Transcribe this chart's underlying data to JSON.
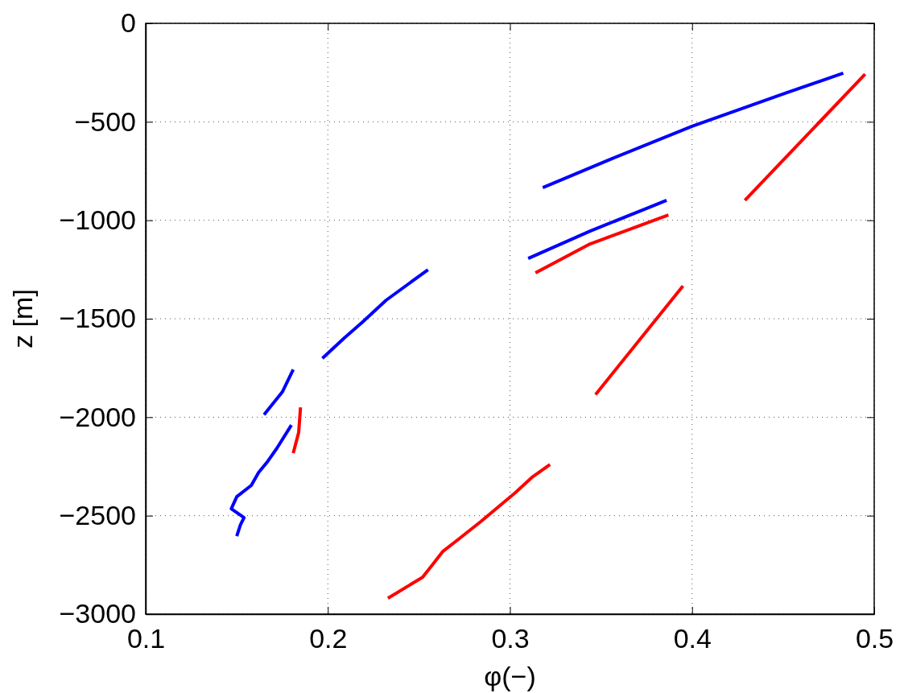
{
  "chart_data": {
    "type": "line",
    "xlabel": "φ(−)",
    "ylabel": "z [m]",
    "xlim": [
      0.1,
      0.5
    ],
    "ylim": [
      -3000,
      0
    ],
    "xticks": [
      0.1,
      0.2,
      0.3,
      0.4,
      0.5
    ],
    "yticks": [
      {
        "value": -3000,
        "label": "−3000"
      },
      {
        "value": -2500,
        "label": "−2500"
      },
      {
        "value": -2000,
        "label": "−2000"
      },
      {
        "value": -1500,
        "label": "−1500"
      },
      {
        "value": -1000,
        "label": "−1000"
      },
      {
        "value": -500,
        "label": "−500"
      },
      0
    ],
    "grid": true,
    "line_style": "solid",
    "marker": "none",
    "series": [
      {
        "color": "#0000ff",
        "x": [
          0.318,
          0.356,
          0.4,
          0.452,
          0.483
        ],
        "values": [
          -834,
          -687,
          -523,
          -352,
          -253
        ]
      },
      {
        "color": "#0000ff",
        "x": [
          0.31,
          0.344,
          0.386
        ],
        "values": [
          -1194,
          -1055,
          -899
        ]
      },
      {
        "color": "#ff0000",
        "x": [
          0.314,
          0.344,
          0.387
        ],
        "values": [
          -1267,
          -1120,
          -973
        ]
      },
      {
        "color": "#ff0000",
        "x": [
          0.429,
          0.495
        ],
        "values": [
          -899,
          -258
        ]
      },
      {
        "color": "#ff0000",
        "x": [
          0.347,
          0.395
        ],
        "values": [
          -1885,
          -1333
        ]
      },
      {
        "color": "#ff0000",
        "x": [
          0.233,
          0.252,
          0.257,
          0.263,
          0.271,
          0.284,
          0.303,
          0.312,
          0.322
        ],
        "values": [
          -2919,
          -2813,
          -2755,
          -2683,
          -2625,
          -2530,
          -2383,
          -2306,
          -2240
        ]
      },
      {
        "color": "#0000ff",
        "x": [
          0.197,
          0.209,
          0.219,
          0.232,
          0.255
        ],
        "values": [
          -1701,
          -1598,
          -1517,
          -1406,
          -1251
        ]
      },
      {
        "color": "#0000ff",
        "x": [
          0.165,
          0.175,
          0.181
        ],
        "values": [
          -1987,
          -1872,
          -1758
        ]
      },
      {
        "color": "#ff0000",
        "x": [
          0.181,
          0.184,
          0.185
        ],
        "values": [
          -2183,
          -2077,
          -1950
        ]
      },
      {
        "color": "#0000ff",
        "x": [
          0.15,
          0.152,
          0.154,
          0.147,
          0.15,
          0.158,
          0.162,
          0.167,
          0.172,
          0.18
        ],
        "values": [
          -2604,
          -2547,
          -2510,
          -2465,
          -2404,
          -2346,
          -2281,
          -2224,
          -2158,
          -2040
        ]
      }
    ]
  }
}
